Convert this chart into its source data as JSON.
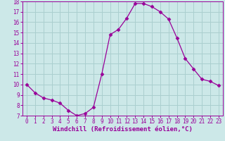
{
  "x": [
    0,
    1,
    2,
    3,
    4,
    5,
    6,
    7,
    8,
    9,
    10,
    11,
    12,
    13,
    14,
    15,
    16,
    17,
    18,
    19,
    20,
    21,
    22,
    23
  ],
  "y": [
    10.0,
    9.2,
    8.7,
    8.5,
    8.2,
    7.5,
    7.0,
    7.2,
    7.8,
    11.0,
    14.8,
    15.3,
    16.4,
    17.8,
    17.8,
    17.5,
    17.0,
    16.3,
    14.5,
    12.5,
    11.5,
    10.5,
    10.3,
    9.9
  ],
  "line_color": "#990099",
  "marker": "D",
  "marker_size": 2.5,
  "bg_color": "#cce8e8",
  "grid_color": "#aacfcf",
  "xlabel": "Windchill (Refroidissement éolien,°C)",
  "ylabel": "",
  "ylim": [
    7,
    18
  ],
  "xlim": [
    -0.5,
    23.5
  ],
  "yticks": [
    7,
    8,
    9,
    10,
    11,
    12,
    13,
    14,
    15,
    16,
    17,
    18
  ],
  "xticks": [
    0,
    1,
    2,
    3,
    4,
    5,
    6,
    7,
    8,
    9,
    10,
    11,
    12,
    13,
    14,
    15,
    16,
    17,
    18,
    19,
    20,
    21,
    22,
    23
  ],
  "tick_label_fontsize": 5.5,
  "xlabel_fontsize": 6.5
}
